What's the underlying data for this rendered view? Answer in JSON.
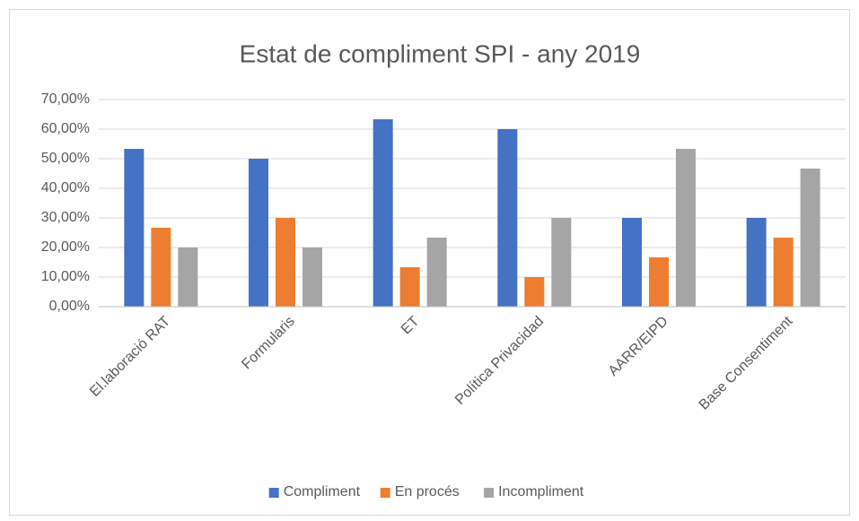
{
  "chart_data": {
    "type": "bar",
    "title": "Estat de compliment SPI - any 2019",
    "categories": [
      "El.laboració RAT",
      "Formularis",
      "ET",
      "Política Privacidad",
      "AARR/EIPD",
      "Base Consentiment"
    ],
    "series": [
      {
        "name": "Compliment",
        "color": "#4472c4",
        "values": [
          53.33,
          50,
          63.33,
          60,
          30,
          30
        ]
      },
      {
        "name": "En procés",
        "color": "#ed7d31",
        "values": [
          26.67,
          30,
          13.33,
          10,
          16.67,
          23.33
        ]
      },
      {
        "name": "Incompliment",
        "color": "#a5a5a5",
        "values": [
          20,
          20,
          23.33,
          30,
          53.33,
          46.67
        ]
      }
    ],
    "ylim": [
      0,
      70
    ],
    "yticks": [
      {
        "value": 0,
        "label": "0,00%"
      },
      {
        "value": 10,
        "label": "10,00%"
      },
      {
        "value": 20,
        "label": "20,00%"
      },
      {
        "value": 30,
        "label": "30,00%"
      },
      {
        "value": 40,
        "label": "40,00%"
      },
      {
        "value": 50,
        "label": "50,00%"
      },
      {
        "value": 60,
        "label": "60,00%"
      },
      {
        "value": 70,
        "label": "70,00%"
      }
    ],
    "grid": true,
    "legend": "bottom"
  }
}
